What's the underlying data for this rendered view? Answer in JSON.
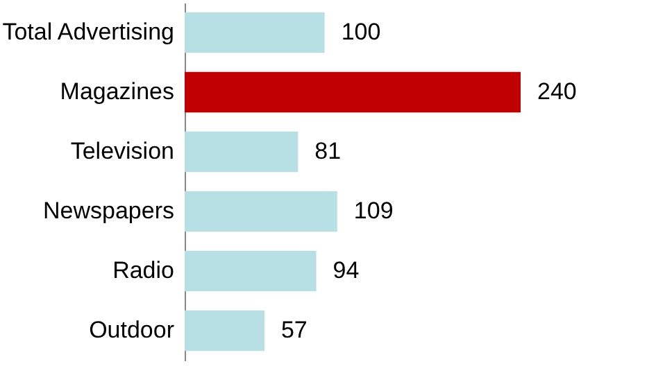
{
  "chart_data": {
    "type": "bar",
    "orientation": "horizontal",
    "categories": [
      "Total Advertising",
      "Magazines",
      "Television",
      "Newspapers",
      "Radio",
      "Outdoor"
    ],
    "values": [
      100,
      240,
      81,
      109,
      94,
      57
    ],
    "colors": [
      "#b7e0e4",
      "#c00000",
      "#b7e0e4",
      "#b7e0e4",
      "#b7e0e4",
      "#b7e0e4"
    ],
    "data_labels": true
  }
}
